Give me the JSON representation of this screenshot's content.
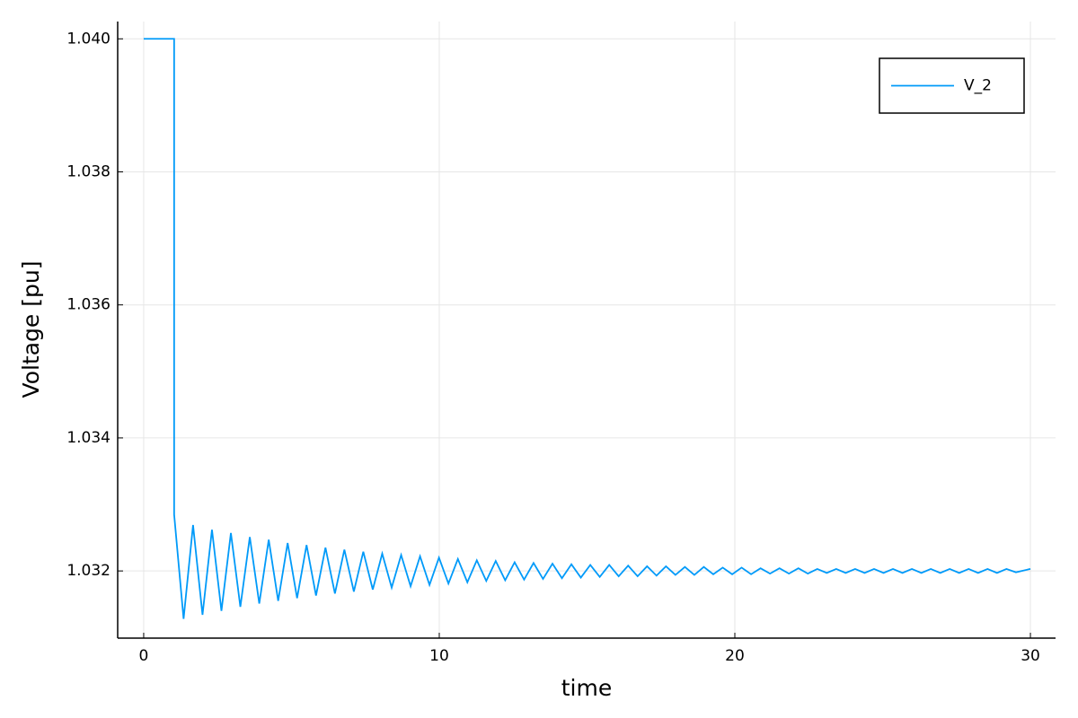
{
  "chart_data": {
    "type": "line",
    "xlabel": "time",
    "ylabel": "Voltage [pu]",
    "x": [
      0,
      1.03,
      1.03,
      1.35,
      1.67,
      1.99,
      2.31,
      2.63,
      2.95,
      3.27,
      3.59,
      3.91,
      4.23,
      4.55,
      4.87,
      5.19,
      5.51,
      5.83,
      6.15,
      6.47,
      6.79,
      7.11,
      7.43,
      7.75,
      8.07,
      8.39,
      8.71,
      9.03,
      9.35,
      9.67,
      9.99,
      10.31,
      10.63,
      10.95,
      11.27,
      11.59,
      11.91,
      12.23,
      12.55,
      12.87,
      13.19,
      13.51,
      13.83,
      14.15,
      14.47,
      14.79,
      15.11,
      15.43,
      15.75,
      16.07,
      16.39,
      16.71,
      17.03,
      17.35,
      17.67,
      17.99,
      18.31,
      18.63,
      18.95,
      19.27,
      19.59,
      19.91,
      20.23,
      20.55,
      20.87,
      21.19,
      21.51,
      21.83,
      22.15,
      22.47,
      22.79,
      23.11,
      23.43,
      23.75,
      24.07,
      24.39,
      24.71,
      25.03,
      25.35,
      25.67,
      25.99,
      26.31,
      26.63,
      26.95,
      27.27,
      27.59,
      27.91,
      28.23,
      28.55,
      28.87,
      29.19,
      29.51,
      30
    ],
    "series": [
      {
        "name": "V_2",
        "color": "#009af9",
        "values": [
          1.04,
          1.04,
          1.03285,
          1.03128,
          1.03269,
          1.03134,
          1.03262,
          1.0314,
          1.03257,
          1.03146,
          1.03251,
          1.03151,
          1.03247,
          1.03155,
          1.03242,
          1.03159,
          1.03239,
          1.03163,
          1.03235,
          1.03166,
          1.03232,
          1.03169,
          1.03229,
          1.03172,
          1.03226,
          1.03175,
          1.03224,
          1.03177,
          1.03222,
          1.03179,
          1.0322,
          1.03181,
          1.03218,
          1.03183,
          1.03216,
          1.03185,
          1.03215,
          1.03186,
          1.03213,
          1.03187,
          1.03212,
          1.03188,
          1.03211,
          1.03189,
          1.0321,
          1.0319,
          1.03209,
          1.03191,
          1.03209,
          1.03192,
          1.03208,
          1.03192,
          1.03207,
          1.03193,
          1.03207,
          1.03194,
          1.03206,
          1.03194,
          1.03206,
          1.03195,
          1.03205,
          1.03195,
          1.03205,
          1.03195,
          1.03204,
          1.03196,
          1.03204,
          1.03196,
          1.03204,
          1.03196,
          1.03203,
          1.03197,
          1.03203,
          1.03197,
          1.03203,
          1.03197,
          1.03203,
          1.03197,
          1.03203,
          1.03197,
          1.03203,
          1.03197,
          1.03203,
          1.03197,
          1.03203,
          1.03197,
          1.03203,
          1.03197,
          1.03203,
          1.03197,
          1.03203,
          1.03198,
          1.03203
        ]
      }
    ],
    "xlim": [
      -0.88,
      30.85
    ],
    "xticks": [
      0,
      10,
      20,
      30
    ],
    "ylim": [
      1.03099,
      1.04026
    ],
    "yticks": [
      1.032,
      1.034,
      1.036,
      1.038,
      {
        "value": 1.04,
        "label": "1.040"
      }
    ],
    "grid": true,
    "legend": "upper right"
  }
}
